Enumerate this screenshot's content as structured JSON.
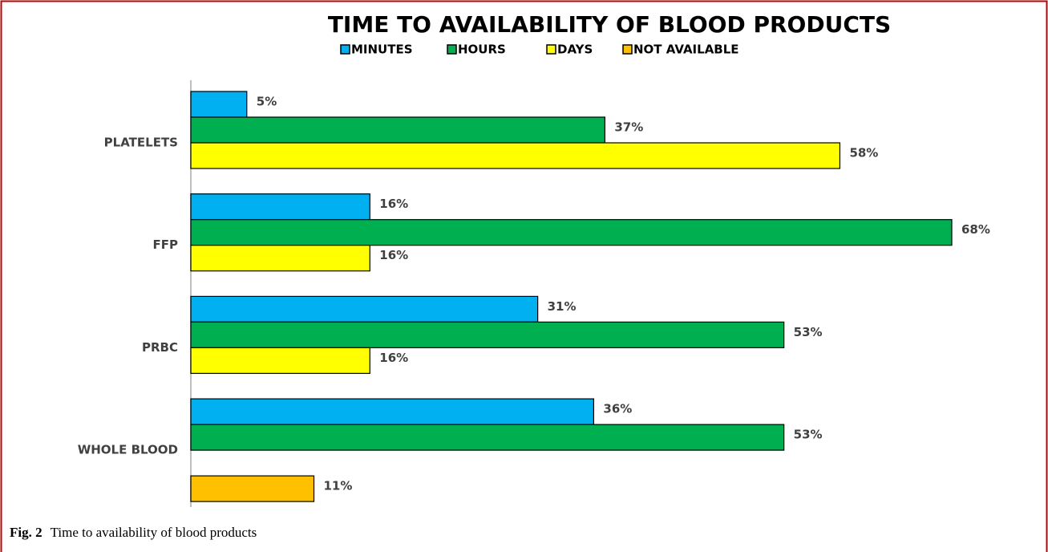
{
  "chart_data": {
    "type": "hbar",
    "title": "TIME TO AVAILABILITY OF BLOOD PRODUCTS",
    "categories": [
      "PLATELETS",
      "FFP",
      "PRBC",
      "WHOLE BLOOD"
    ],
    "series": [
      {
        "name": "MINUTES",
        "color": "#00b0f0",
        "values": [
          5,
          16,
          31,
          36
        ],
        "value_labels": [
          "5%",
          "16%",
          "31%",
          "36%"
        ]
      },
      {
        "name": "HOURS",
        "color": "#00b050",
        "values": [
          37,
          68,
          53,
          53
        ],
        "value_labels": [
          "37%",
          "68%",
          "53%",
          "53%"
        ]
      },
      {
        "name": "DAYS",
        "color": "#ffff00",
        "values": [
          58,
          16,
          16,
          null
        ],
        "value_labels": [
          "58%",
          "16%",
          "16%",
          null
        ]
      },
      {
        "name": "NOT AVAILABLE",
        "color": "#ffc000",
        "values": [
          null,
          null,
          null,
          11
        ],
        "value_labels": [
          null,
          null,
          null,
          "11%"
        ]
      }
    ],
    "xlim": [
      0,
      68
    ],
    "legend": "top"
  },
  "caption_label": "Fig. 2",
  "caption": "Time to availability of blood products"
}
